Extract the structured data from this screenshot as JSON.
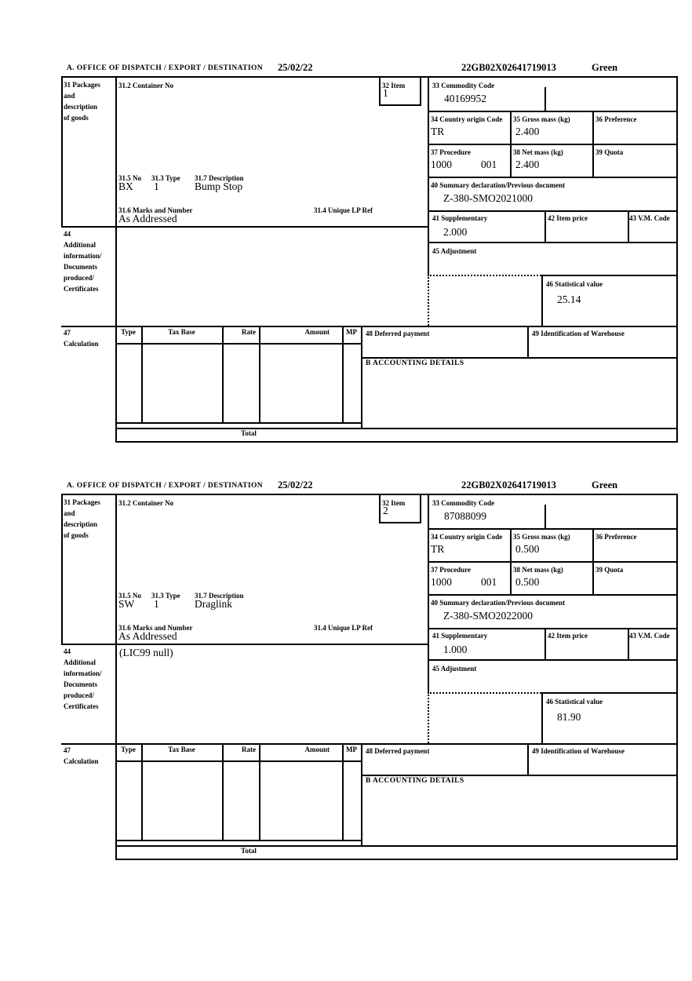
{
  "sections": [
    {
      "header_title": "A.  OFFICE OF DISPATCH / EXPORT / DESTINATION",
      "header_date": "25/02/22",
      "entry_number": "22GB02X02641719013",
      "routing": "Green",
      "box31_label": "31 Packages\nand\ndescription\nof goods",
      "container_no_label": "31.2 Container No",
      "item_label": "32 Item",
      "item_number": "1",
      "commodity_code_label": "33 Commodity Code",
      "commodity_code": "40169952",
      "country_origin_label": "34 Country origin Code",
      "country_origin": "TR",
      "gross_mass_label": "35 Gross mass (kg)",
      "gross_mass": "2.400",
      "preference_label": "36 Preference",
      "procedure_label": "37 Procedure",
      "procedure_code": "1000",
      "procedure_suffix": "001",
      "net_mass_label": "38 Net mass (kg)",
      "net_mass": "2.400",
      "quota_label": "39 Quota",
      "summary_declaration_label": "40 Summary declaration/Previous document",
      "summary_declaration": "Z-380-SMO2021000",
      "supplementary_label": "41 Supplementary",
      "supplementary_units": "2.000",
      "item_price_label": "42 Item price",
      "vm_code_label": "43 V.M. Code",
      "adjustment_label": "45 Adjustment",
      "statistical_value_label": "46 Statistical value",
      "statistical_value": "25.14",
      "no_label": "31.5 No",
      "package_code": "BX",
      "type_label": "31.3 Type",
      "package_type": "1",
      "description_label": "31.7 Description",
      "goods_description": "Bump Stop",
      "marks_label": "31.6 Marks and Number",
      "marks": "As Addressed",
      "lp_ref_label": "31.4 Unique LP Ref",
      "box44_label": "44\nAdditional\ninformation/\nDocuments\nproduced/\nCertificates",
      "additional_info": "",
      "box47_label": "47\nCalculation",
      "tax_type_header": "Type",
      "tax_base_header": "Tax Base",
      "rate_header": "Rate",
      "amount_header": "Amount",
      "mp_header": "MP",
      "deferred_payment_label": "48 Deferred payment",
      "warehouse_label": "49 Identification of Warehouse",
      "accounting_details_label": "B ACCOUNTING DETAILS",
      "total_label": "Total"
    },
    {
      "header_title": "A.  OFFICE OF DISPATCH / EXPORT / DESTINATION",
      "header_date": "25/02/22",
      "entry_number": "22GB02X02641719013",
      "routing": "Green",
      "box31_label": "31 Packages\nand\ndescription\nof goods",
      "container_no_label": "31.2 Container No",
      "item_label": "32 Item",
      "item_number": "2",
      "commodity_code_label": "33 Commodity Code",
      "commodity_code": "87088099",
      "country_origin_label": "34 Country origin Code",
      "country_origin": "TR",
      "gross_mass_label": "35 Gross mass (kg)",
      "gross_mass": "0.500",
      "preference_label": "36 Preference",
      "procedure_label": "37 Procedure",
      "procedure_code": "1000",
      "procedure_suffix": "001",
      "net_mass_label": "38 Net mass (kg)",
      "net_mass": "0.500",
      "quota_label": "39 Quota",
      "summary_declaration_label": "40 Summary declaration/Previous document",
      "summary_declaration": "Z-380-SMO2022000",
      "supplementary_label": "41 Supplementary",
      "supplementary_units": "1.000",
      "item_price_label": "42 Item price",
      "vm_code_label": "43 V.M. Code",
      "adjustment_label": "45 Adjustment",
      "statistical_value_label": "46 Statistical value",
      "statistical_value": "81.90",
      "no_label": "31.5 No",
      "package_code": "SW",
      "type_label": "31.3 Type",
      "package_type": "1",
      "description_label": "31.7 Description",
      "goods_description": "Draglink",
      "marks_label": "31.6 Marks and Number",
      "marks": "As Addressed",
      "lp_ref_label": "31.4 Unique LP Ref",
      "box44_label": "44\nAdditional\ninformation/\nDocuments\nproduced/\nCertificates",
      "additional_info": "(LIC99 null)",
      "box47_label": "47\nCalculation",
      "tax_type_header": "Type",
      "tax_base_header": "Tax Base",
      "rate_header": "Rate",
      "amount_header": "Amount",
      "mp_header": "MP",
      "deferred_payment_label": "48 Deferred payment",
      "warehouse_label": "49 Identification of Warehouse",
      "accounting_details_label": "B ACCOUNTING DETAILS",
      "total_label": "Total"
    }
  ]
}
